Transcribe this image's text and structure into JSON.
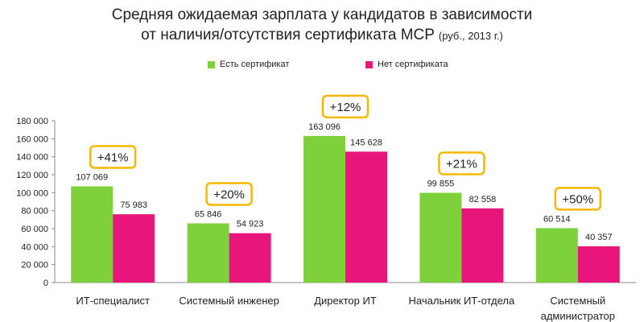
{
  "chart_data": {
    "type": "bar",
    "title": "Средняя ожидаемая зарплата у кандидатов в зависимости",
    "title_line2": "от наличия/отсутствия сертификата MCP",
    "title_suffix": "(руб., 2013 г.)",
    "xlabel": "",
    "ylabel": "",
    "ylim": [
      0,
      180000
    ],
    "yticks": [
      "0",
      "20 000",
      "40 000",
      "60 000",
      "80 000",
      "100 000",
      "120 000",
      "140 000",
      "160 000",
      "180 000"
    ],
    "grid": false,
    "legend_position": "top",
    "categories": [
      [
        "ИТ-специалист"
      ],
      [
        "Системный инженер"
      ],
      [
        "Директор ИТ"
      ],
      [
        "Начальник ИТ-отдела"
      ],
      [
        "Системный",
        "администратор"
      ]
    ],
    "series": [
      {
        "name": "Есть сертификат",
        "color": "#7ed13b",
        "values": [
          107069,
          65846,
          163096,
          99855,
          60514
        ],
        "labels": [
          "107 069",
          "65 846",
          "163 096",
          "99 855",
          "60 514"
        ]
      },
      {
        "name": "Нет сертификата",
        "color": "#e8157b",
        "values": [
          75983,
          54923,
          145628,
          82558,
          40357
        ],
        "labels": [
          "75 983",
          "54 923",
          "145 628",
          "82 558",
          "40 357"
        ]
      }
    ],
    "annotations": [
      "+41%",
      "+20%",
      "+12%",
      "+21%",
      "+50%"
    ],
    "annotation_color": "#f5b800"
  }
}
